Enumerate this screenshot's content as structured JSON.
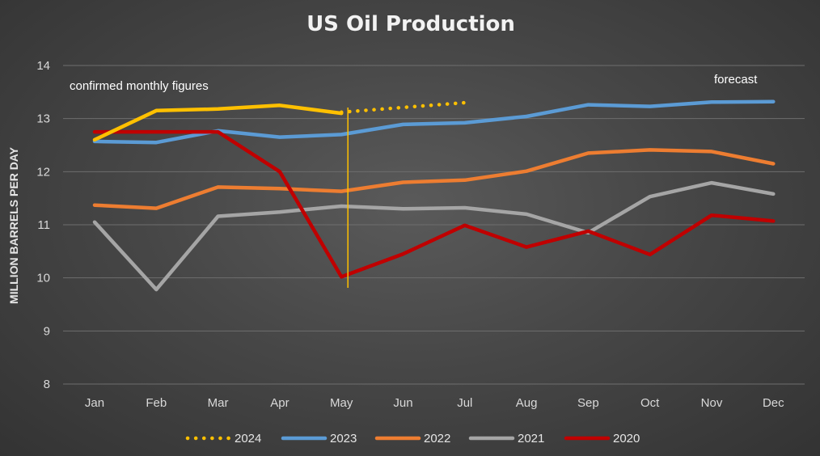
{
  "chart_data": {
    "type": "line",
    "title": "US Oil Production",
    "xlabel": "",
    "ylabel": "MILLION BARRELS PER DAY",
    "ylim": [
      8,
      14
    ],
    "yticks": [
      8,
      9,
      10,
      11,
      12,
      13,
      14
    ],
    "grid": true,
    "legend_position": "bottom",
    "categories": [
      "Jan",
      "Feb",
      "Mar",
      "Apr",
      "May",
      "Jun",
      "Jul",
      "Aug",
      "Sep",
      "Oct",
      "Nov",
      "Dec"
    ],
    "series": [
      {
        "name": "2024",
        "color": "#ffc000",
        "values": [
          12.6,
          13.15,
          13.18,
          13.25,
          13.1,
          null,
          null,
          null,
          null,
          null,
          null,
          null
        ],
        "forecast_values": [
          null,
          null,
          null,
          null,
          13.12,
          13.21,
          13.3,
          null,
          null,
          null,
          null,
          null
        ]
      },
      {
        "name": "2023",
        "color": "#5b9bd5",
        "values": [
          12.57,
          12.55,
          12.77,
          12.65,
          12.7,
          12.89,
          12.92,
          13.04,
          13.26,
          13.23,
          13.31,
          13.32
        ]
      },
      {
        "name": "2022",
        "color": "#ed7d31",
        "values": [
          11.37,
          11.31,
          11.71,
          11.68,
          11.63,
          11.8,
          11.84,
          12.01,
          12.35,
          12.41,
          12.38,
          12.15
        ]
      },
      {
        "name": "2021",
        "color": "#a5a5a5",
        "values": [
          11.05,
          9.78,
          11.16,
          11.24,
          11.35,
          11.3,
          11.32,
          11.2,
          10.85,
          11.53,
          11.79,
          11.58
        ]
      },
      {
        "name": "2020",
        "color": "#c00000",
        "values": [
          12.75,
          12.75,
          12.75,
          12.0,
          10.02,
          10.45,
          10.99,
          10.58,
          10.88,
          10.44,
          11.18,
          11.07
        ]
      }
    ],
    "annotations": {
      "left": "confirmed monthly figures",
      "right": "forecast",
      "divider_category": "May"
    }
  }
}
